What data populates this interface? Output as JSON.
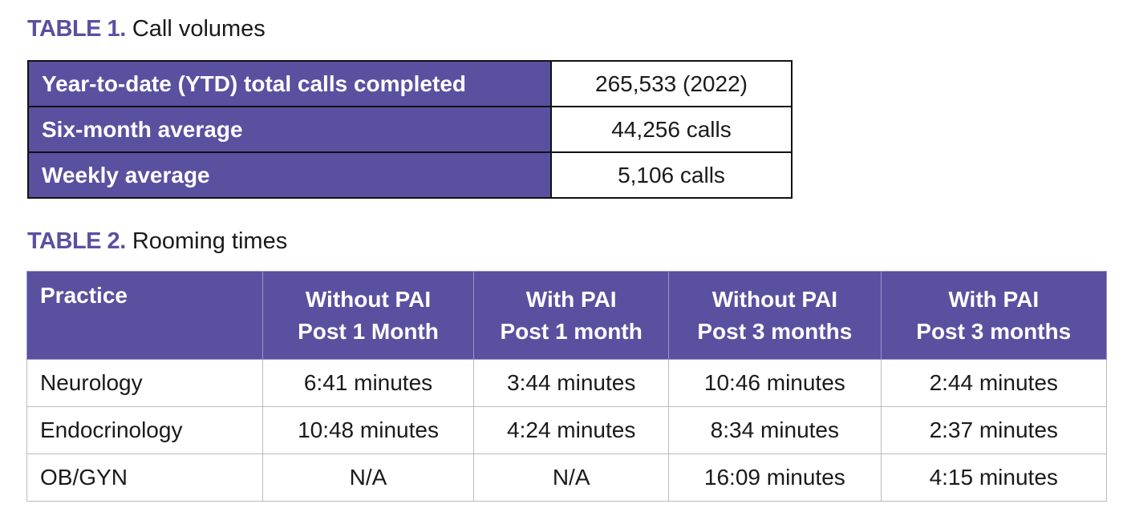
{
  "table1": {
    "label": "TABLE 1.",
    "title": "Call volumes",
    "rows": [
      [
        "Year-to-date (YTD) total calls completed",
        "265,533 (2022)"
      ],
      [
        "Six-month average",
        "44,256 calls"
      ],
      [
        "Weekly average",
        "5,106 calls"
      ]
    ]
  },
  "table2": {
    "label": "TABLE 2.",
    "title": "Rooming times",
    "headers": [
      [
        "Practice",
        ""
      ],
      [
        "Without PAI",
        "Post 1 Month"
      ],
      [
        "With PAI",
        "Post 1 month"
      ],
      [
        "Without PAI",
        "Post 3 months"
      ],
      [
        "With PAI",
        "Post 3 months"
      ]
    ],
    "rows": [
      [
        "Neurology",
        "6:41 minutes",
        "3:44 minutes",
        "10:46 minutes",
        "2:44 minutes"
      ],
      [
        "Endocrinology",
        "10:48 minutes",
        "4:24 minutes",
        "8:34 minutes",
        "2:37 minutes"
      ],
      [
        "OB/GYN",
        "N/A",
        "N/A",
        "16:09 minutes",
        "4:15 minutes"
      ]
    ]
  },
  "colors": {
    "accent": "#5a50a0"
  }
}
